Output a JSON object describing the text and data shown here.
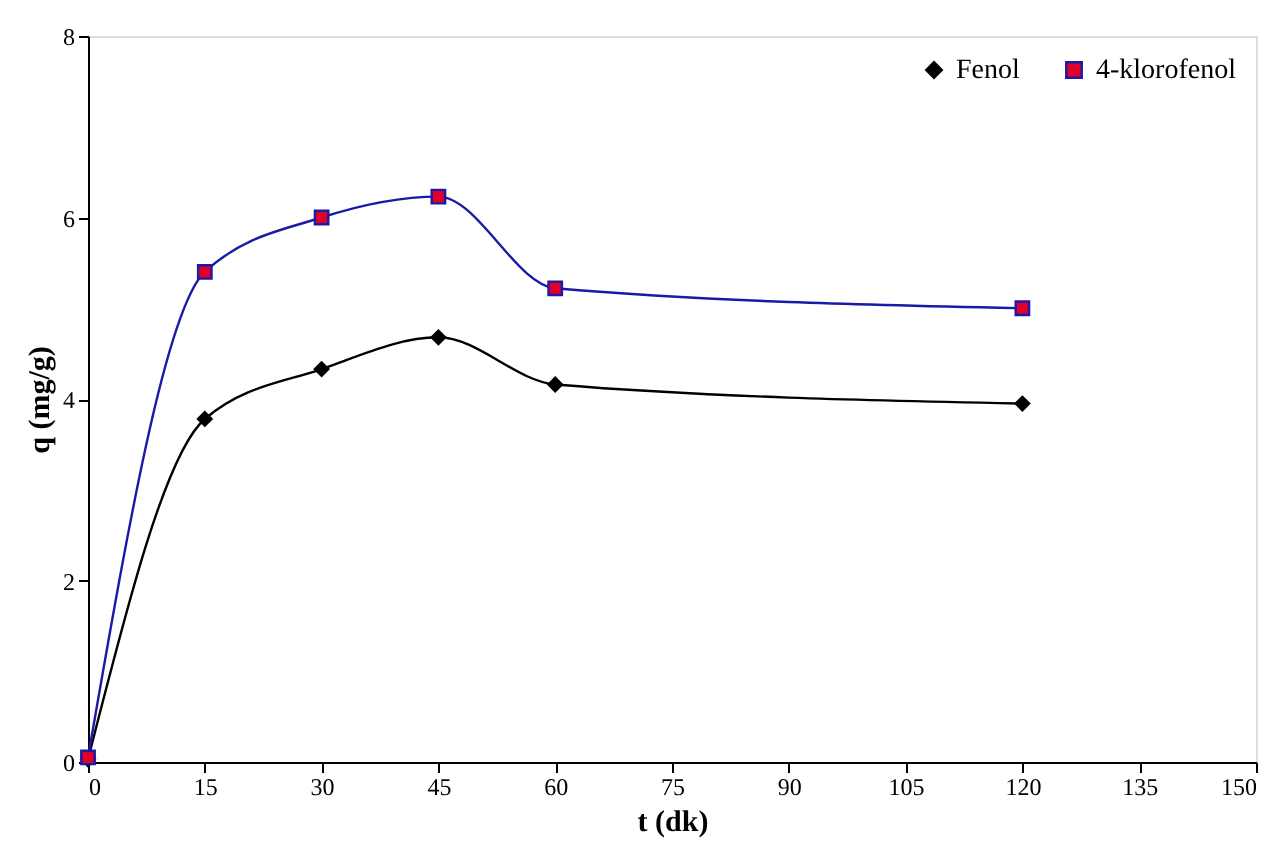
{
  "chart_data": {
    "type": "line",
    "xlabel": "t (dk)",
    "ylabel": "q (mg/g)",
    "x": [
      0,
      15,
      30,
      45,
      60,
      120
    ],
    "series": [
      {
        "name": "Fenol",
        "color": "#000000",
        "marker": "diamond",
        "values": [
          0.03,
          3.78,
          4.33,
          4.68,
          4.16,
          3.95
        ]
      },
      {
        "name": "4-klorofenol",
        "color": "#1a1aa6",
        "colors": [
          "#e0002a",
          "#e0002a",
          "#e0002a",
          "#e0002a",
          "#e0002a",
          "#e0002a"
        ],
        "marker": "square",
        "values": [
          0.05,
          5.4,
          6.0,
          6.23,
          5.22,
          5.0
        ]
      }
    ],
    "xlim": [
      0,
      150
    ],
    "xticks": [
      0,
      15,
      30,
      45,
      60,
      75,
      90,
      105,
      120,
      135,
      150
    ],
    "ylim": [
      0,
      8
    ],
    "yticks": [
      0,
      2,
      4,
      6,
      8
    ],
    "grid": false,
    "legend": "top right"
  }
}
